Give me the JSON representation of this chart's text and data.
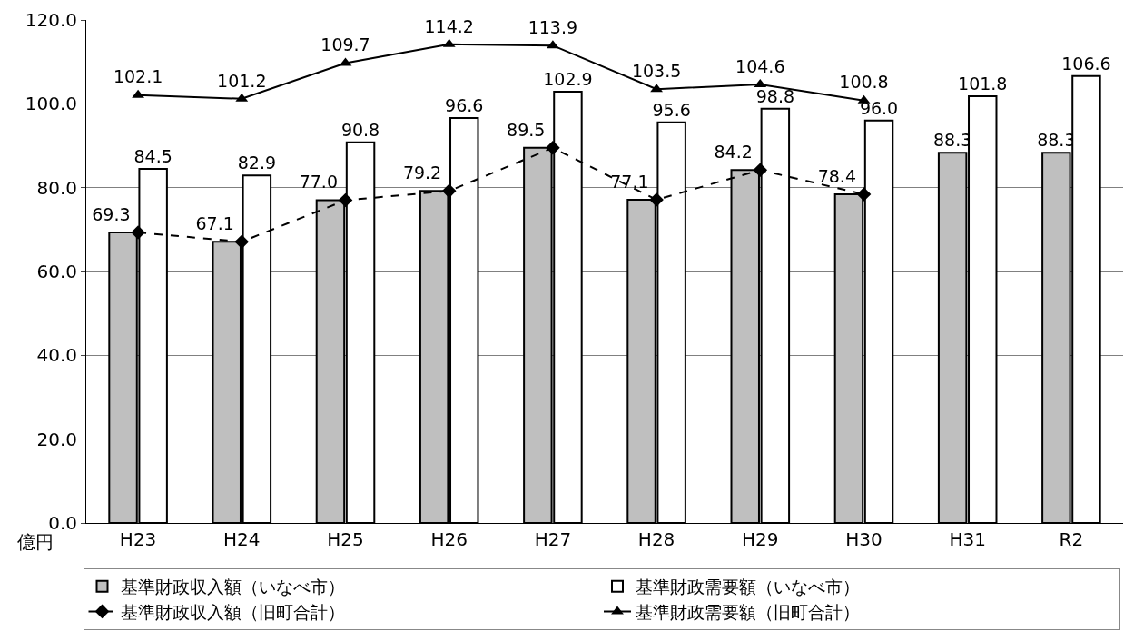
{
  "chart_data": {
    "type": "bar",
    "ylabel": "億円",
    "categories": [
      "H23",
      "H24",
      "H25",
      "H26",
      "H27",
      "H28",
      "H29",
      "H30",
      "H31",
      "R2"
    ],
    "ylim": [
      0,
      120
    ],
    "yticks": [
      {
        "value": 0,
        "label": "0.0"
      },
      {
        "value": 20,
        "label": "20.0"
      },
      {
        "value": 40,
        "label": "40.0"
      },
      {
        "value": 60,
        "label": "60.0"
      },
      {
        "value": 80,
        "label": "80.0"
      },
      {
        "value": 100,
        "label": "100.0"
      },
      {
        "value": 120,
        "label": "120.0"
      }
    ],
    "grid": "y",
    "legend": "bottom",
    "series": [
      {
        "name": "基準財政収入額（いなべ市）",
        "color": "#bfbfbf",
        "values": [
          69.3,
          67.1,
          77.0,
          79.2,
          89.5,
          77.1,
          84.2,
          78.4,
          88.3,
          88.3
        ],
        "value_labels": [
          null,
          null,
          null,
          null,
          null,
          null,
          null,
          null,
          "88.3",
          "88.3"
        ]
      },
      {
        "name": "基準財政需要額（いなべ市）",
        "color": "#ffffff",
        "values": [
          84.5,
          82.9,
          90.8,
          96.6,
          102.9,
          95.6,
          98.8,
          96.0,
          101.8,
          106.6
        ],
        "value_labels": [
          "84.5",
          "82.9",
          "90.8",
          "96.6",
          "102.9",
          "95.6",
          "98.8",
          "96.0",
          "101.8",
          "106.6"
        ]
      },
      {
        "name": "基準財政収入額（旧町合計）",
        "type": "line",
        "color": "#000000",
        "marker": "diamond",
        "line_style": "dashed",
        "values": [
          69.3,
          67.1,
          77.0,
          79.2,
          89.5,
          77.1,
          84.2,
          78.4,
          null,
          null
        ],
        "value_labels": [
          "69.3",
          "67.1",
          "77.0",
          "79.2",
          "89.5",
          "77.1",
          "84.2",
          "78.4",
          null,
          null
        ]
      },
      {
        "name": "基準財政需要額（旧町合計）",
        "type": "line",
        "color": "#000000",
        "marker": "triangle",
        "line_style": "solid",
        "values": [
          102.1,
          101.2,
          109.7,
          114.2,
          113.9,
          103.5,
          104.6,
          100.8,
          null,
          null
        ],
        "value_labels": [
          "102.1",
          "101.2",
          "109.7",
          "114.2",
          "113.9",
          "103.5",
          "104.6",
          "100.8",
          null,
          null
        ]
      }
    ]
  }
}
